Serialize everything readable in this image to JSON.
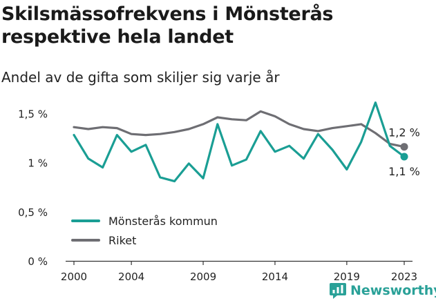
{
  "header": {
    "title": "Skilsmässofrekvens i Mönsterås respektive hela landet",
    "subtitle": "Andel av de gifta som skiljer sig varje år"
  },
  "brand": {
    "name": "Newsworthy",
    "color": "#2aa198"
  },
  "chart_data": {
    "type": "line",
    "title": "Skilsmässofrekvens i Mönsterås respektive hela landet",
    "subtitle": "Andel av de gifta som skiljer sig varje år",
    "xlabel": "",
    "ylabel": "",
    "x": [
      2000,
      2001,
      2002,
      2003,
      2004,
      2005,
      2006,
      2007,
      2008,
      2009,
      2010,
      2011,
      2012,
      2013,
      2014,
      2015,
      2016,
      2017,
      2018,
      2019,
      2020,
      2021,
      2022,
      2023
    ],
    "x_ticks": [
      {
        "value": 2000,
        "label": "2000"
      },
      {
        "value": 2004,
        "label": "2004"
      },
      {
        "value": 2009,
        "label": "2009"
      },
      {
        "value": 2014,
        "label": "2014"
      },
      {
        "value": 2019,
        "label": "2019"
      },
      {
        "value": 2023,
        "label": "2023"
      }
    ],
    "ylim": [
      0,
      1.6
    ],
    "y_ticks": [
      {
        "value": 0,
        "label": "0 %"
      },
      {
        "value": 0.5,
        "label": "0,5 %"
      },
      {
        "value": 1.0,
        "label": "1 %"
      },
      {
        "value": 1.5,
        "label": "1,5 %"
      }
    ],
    "grid": false,
    "legend_position": "bottom-left",
    "series": [
      {
        "name": "Mönsterås kommun",
        "color": "#1a9e94",
        "values": [
          1.28,
          1.04,
          0.95,
          1.28,
          1.11,
          1.18,
          0.85,
          0.81,
          0.99,
          0.84,
          1.39,
          0.97,
          1.03,
          1.32,
          1.11,
          1.17,
          1.04,
          1.29,
          1.13,
          0.93,
          1.21,
          1.61,
          1.17,
          1.06
        ],
        "end_label": "1,1 %"
      },
      {
        "name": "Riket",
        "color": "#6e6e73",
        "values": [
          1.36,
          1.34,
          1.36,
          1.35,
          1.29,
          1.28,
          1.29,
          1.31,
          1.34,
          1.39,
          1.46,
          1.44,
          1.43,
          1.52,
          1.47,
          1.39,
          1.34,
          1.32,
          1.35,
          1.37,
          1.39,
          1.3,
          1.19,
          1.16
        ],
        "end_label": "1,2 %"
      }
    ]
  }
}
